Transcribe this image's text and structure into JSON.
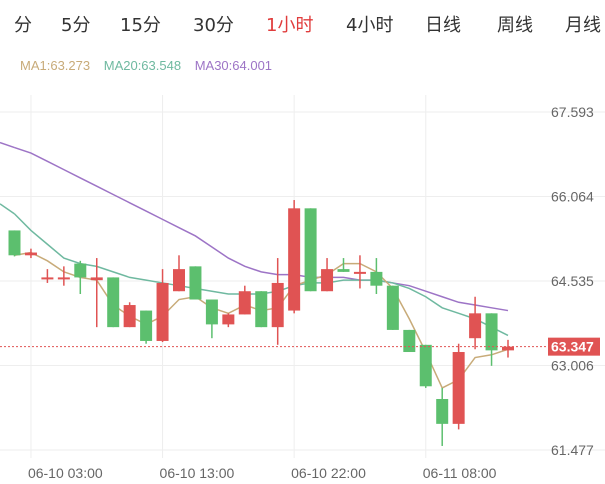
{
  "tabs": [
    {
      "label": "分",
      "active": false
    },
    {
      "label": "5分",
      "active": false
    },
    {
      "label": "15分",
      "active": false
    },
    {
      "label": "30分",
      "active": false
    },
    {
      "label": "1小时",
      "active": true
    },
    {
      "label": "4小时",
      "active": false
    },
    {
      "label": "日线",
      "active": false
    },
    {
      "label": "周线",
      "active": false
    },
    {
      "label": "月线",
      "active": false
    }
  ],
  "legend": {
    "ma1": "MA1:63.273",
    "ma20": "MA20:63.548",
    "ma30": "MA30:64.001"
  },
  "colors": {
    "up": "#e05353",
    "down": "#5cbf6e",
    "ma1": "#c8ab79",
    "ma20": "#6fb9a0",
    "ma30": "#9d74c6",
    "active_tab": "#e03c3c",
    "current_price": "#e05353"
  },
  "chart_data": {
    "type": "candlestick",
    "y_ticks": [
      "67.593",
      "66.064",
      "64.535",
      "63.006",
      "61.477"
    ],
    "ylim": [
      61.477,
      67.593
    ],
    "x_ticks": [
      {
        "label": "06-10 03:00",
        "index": 1
      },
      {
        "label": "06-10 13:00",
        "index": 9
      },
      {
        "label": "06-10 22:00",
        "index": 17
      },
      {
        "label": "06-11 08:00",
        "index": 25
      }
    ],
    "current_price": "63.347",
    "candles": [
      {
        "o": 65.45,
        "h": 65.45,
        "l": 64.98,
        "c": 65.0
      },
      {
        "o": 65.0,
        "h": 65.12,
        "l": 64.95,
        "c": 65.05
      },
      {
        "o": 64.6,
        "h": 64.75,
        "l": 64.5,
        "c": 64.6
      },
      {
        "o": 64.6,
        "h": 64.8,
        "l": 64.45,
        "c": 64.6
      },
      {
        "o": 64.85,
        "h": 64.9,
        "l": 64.3,
        "c": 64.6
      },
      {
        "o": 64.55,
        "h": 64.95,
        "l": 63.7,
        "c": 64.6
      },
      {
        "o": 64.6,
        "h": 64.6,
        "l": 63.7,
        "c": 63.7
      },
      {
        "o": 63.7,
        "h": 64.15,
        "l": 63.7,
        "c": 64.1
      },
      {
        "o": 64.0,
        "h": 64.0,
        "l": 63.4,
        "c": 63.45
      },
      {
        "o": 63.45,
        "h": 64.75,
        "l": 63.43,
        "c": 64.5
      },
      {
        "o": 64.35,
        "h": 65.0,
        "l": 64.35,
        "c": 64.75
      },
      {
        "o": 64.8,
        "h": 64.8,
        "l": 64.2,
        "c": 64.2
      },
      {
        "o": 64.2,
        "h": 64.2,
        "l": 63.5,
        "c": 63.75
      },
      {
        "o": 63.75,
        "h": 63.95,
        "l": 63.7,
        "c": 63.93
      },
      {
        "o": 63.93,
        "h": 64.45,
        "l": 63.93,
        "c": 64.35
      },
      {
        "o": 64.35,
        "h": 64.35,
        "l": 63.7,
        "c": 63.7
      },
      {
        "o": 63.7,
        "h": 64.95,
        "l": 63.38,
        "c": 64.5
      },
      {
        "o": 64.0,
        "h": 66.0,
        "l": 63.95,
        "c": 65.85
      },
      {
        "o": 65.85,
        "h": 65.85,
        "l": 64.35,
        "c": 64.35
      },
      {
        "o": 64.35,
        "h": 64.95,
        "l": 64.35,
        "c": 64.75
      },
      {
        "o": 64.75,
        "h": 64.95,
        "l": 64.7,
        "c": 64.7
      },
      {
        "o": 64.7,
        "h": 65.0,
        "l": 64.4,
        "c": 64.7
      },
      {
        "o": 64.7,
        "h": 64.95,
        "l": 64.3,
        "c": 64.45
      },
      {
        "o": 64.45,
        "h": 64.45,
        "l": 63.65,
        "c": 63.65
      },
      {
        "o": 63.65,
        "h": 63.65,
        "l": 63.25,
        "c": 63.25
      },
      {
        "o": 63.38,
        "h": 63.38,
        "l": 62.6,
        "c": 62.63
      },
      {
        "o": 62.4,
        "h": 62.6,
        "l": 61.55,
        "c": 61.95
      },
      {
        "o": 61.95,
        "h": 63.4,
        "l": 61.85,
        "c": 63.25
      },
      {
        "o": 63.5,
        "h": 64.25,
        "l": 63.3,
        "c": 63.95
      },
      {
        "o": 63.95,
        "h": 63.95,
        "l": 63.0,
        "c": 63.28
      },
      {
        "o": 63.28,
        "h": 63.47,
        "l": 63.15,
        "c": 63.347
      }
    ],
    "ma1": [
      65.0,
      65.05,
      64.9,
      64.7,
      64.6,
      64.55,
      64.1,
      63.9,
      63.75,
      63.9,
      64.2,
      64.25,
      64.05,
      63.95,
      64.1,
      64.0,
      64.05,
      64.45,
      64.55,
      64.65,
      64.85,
      64.85,
      64.7,
      64.4,
      63.85,
      63.25,
      62.6,
      62.75,
      63.15,
      63.2,
      63.3
    ],
    "ma20": [
      65.75,
      65.45,
      65.2,
      64.95,
      64.85,
      64.8,
      64.7,
      64.6,
      64.55,
      64.5,
      64.45,
      64.4,
      64.35,
      64.3,
      64.3,
      64.3,
      64.35,
      64.45,
      64.5,
      64.5,
      64.55,
      64.55,
      64.55,
      64.5,
      64.4,
      64.25,
      64.05,
      63.95,
      63.85,
      63.7,
      63.55
    ],
    "ma30": [
      66.95,
      66.85,
      66.7,
      66.55,
      66.4,
      66.25,
      66.1,
      65.95,
      65.8,
      65.65,
      65.5,
      65.35,
      65.15,
      64.95,
      64.8,
      64.7,
      64.65,
      64.65,
      64.6,
      64.6,
      64.6,
      64.55,
      64.55,
      64.5,
      64.45,
      64.35,
      64.25,
      64.15,
      64.1,
      64.05,
      64.0
    ]
  }
}
